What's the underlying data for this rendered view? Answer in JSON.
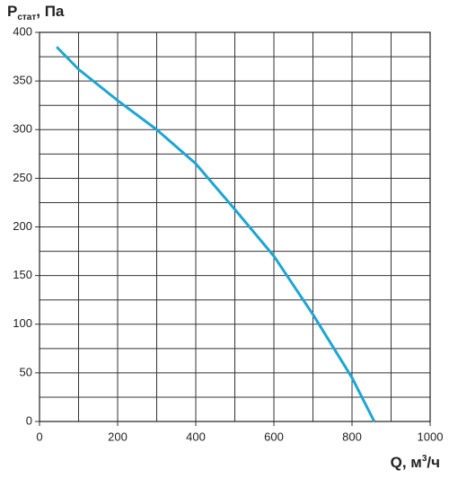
{
  "chart_data": {
    "type": "line",
    "ylabel": {
      "main": "P",
      "sub": "стат",
      "rest": ", Па"
    },
    "xlabel": {
      "main": "Q, м",
      "sup": "3",
      "rest": "/ч"
    },
    "x": [
      44,
      100,
      200,
      300,
      400,
      500,
      600,
      700,
      800,
      857
    ],
    "values": [
      385,
      362,
      330,
      300,
      265,
      218,
      170,
      110,
      45,
      0
    ],
    "color": "#1ba6d6",
    "xlim": [
      0,
      1000
    ],
    "ylim": [
      0,
      400
    ],
    "xticks": [
      0,
      200,
      400,
      600,
      800,
      1000
    ],
    "yticks": [
      0,
      50,
      100,
      150,
      200,
      250,
      300,
      350,
      400
    ],
    "xgrid": [
      100,
      300,
      500,
      700,
      900
    ],
    "ygrid": [
      25,
      75,
      125,
      175,
      225,
      275,
      325,
      375
    ],
    "grid": true
  }
}
